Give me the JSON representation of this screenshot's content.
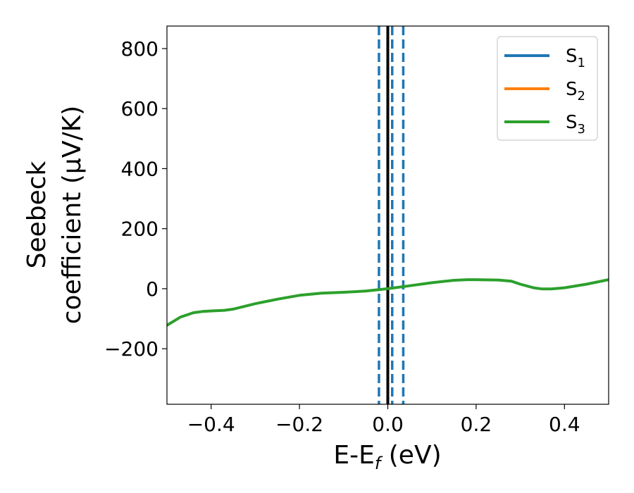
{
  "chart_data": {
    "type": "line",
    "xlabel": {
      "main": "E-E",
      "sub": "f",
      "tail": " (eV)"
    },
    "ylabel_lines": [
      "Seebeck",
      "coefficient  (μV/K)"
    ],
    "xlim": [
      -0.5,
      0.5
    ],
    "ylim": [
      -385,
      875
    ],
    "xticks": [
      -0.4,
      -0.2,
      0.0,
      0.2,
      0.4
    ],
    "xtick_labels": [
      "−0.4",
      "−0.2",
      "0.0",
      "0.2",
      "0.4"
    ],
    "yticks": [
      -200,
      0,
      200,
      400,
      600,
      800
    ],
    "ytick_labels": [
      "−200",
      "0",
      "200",
      "400",
      "600",
      "800"
    ],
    "grid": false,
    "legend_position": "top-right",
    "series": [
      {
        "name": "S",
        "sub": "1",
        "color": "#1f77b4",
        "x": [],
        "y": []
      },
      {
        "name": "S",
        "sub": "2",
        "color": "#ff7f0e",
        "x": [],
        "y": []
      },
      {
        "name": "S",
        "sub": "3",
        "color": "#2ca02c",
        "x": [
          -0.5,
          -0.47,
          -0.44,
          -0.42,
          -0.4,
          -0.37,
          -0.35,
          -0.3,
          -0.25,
          -0.2,
          -0.15,
          -0.1,
          -0.05,
          0.0,
          0.05,
          0.1,
          0.15,
          0.18,
          0.2,
          0.25,
          0.28,
          0.3,
          0.33,
          0.35,
          0.37,
          0.4,
          0.45,
          0.5
        ],
        "y": [
          -122,
          -95,
          -80,
          -76,
          -74,
          -72,
          -68,
          -50,
          -35,
          -22,
          -15,
          -12,
          -8,
          0,
          10,
          20,
          28,
          30,
          30,
          29,
          25,
          15,
          3,
          -1,
          -1,
          3,
          15,
          30
        ]
      }
    ],
    "vertical_lines": [
      {
        "x": 0.0,
        "color": "#000000",
        "style": "solid"
      },
      {
        "x": -0.02,
        "color": "#1f77b4",
        "style": "dashed"
      },
      {
        "x": 0.01,
        "color": "#1f77b4",
        "style": "dashed"
      },
      {
        "x": 0.035,
        "color": "#1f77b4",
        "style": "dashed"
      }
    ]
  }
}
